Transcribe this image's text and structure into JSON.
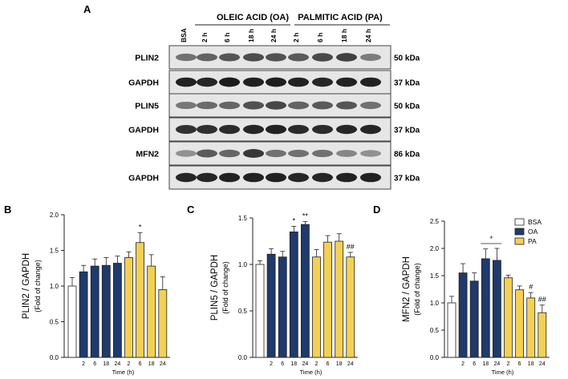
{
  "panel_letters": [
    "A",
    "B",
    "C",
    "D"
  ],
  "blot": {
    "groups": [
      "OLEIC ACID (OA)",
      "PALMITIC ACID (PA)"
    ],
    "lanes": [
      "BSA",
      "2 h",
      "6 h",
      "18 h",
      "24 h",
      "2 h",
      "6 h",
      "18 h",
      "24 h"
    ],
    "rows": [
      {
        "label": "PLIN2",
        "size": "50 kDa",
        "intensity": [
          0.55,
          0.62,
          0.68,
          0.72,
          0.7,
          0.66,
          0.74,
          0.78,
          0.5
        ]
      },
      {
        "label": "GAPDH",
        "size": "37 kDa",
        "intensity": [
          0.92,
          0.9,
          0.95,
          0.93,
          0.94,
          0.92,
          0.9,
          0.92,
          0.93
        ]
      },
      {
        "label": "PLIN5",
        "size": "50 kDa",
        "intensity": [
          0.52,
          0.58,
          0.6,
          0.7,
          0.75,
          0.62,
          0.66,
          0.68,
          0.55
        ]
      },
      {
        "label": "GAPDH",
        "size": "37 kDa",
        "intensity": [
          0.85,
          0.86,
          0.88,
          0.9,
          0.92,
          0.88,
          0.88,
          0.9,
          0.9
        ]
      },
      {
        "label": "MFN2",
        "size": "86 kDa",
        "intensity": [
          0.4,
          0.65,
          0.6,
          0.82,
          0.55,
          0.55,
          0.55,
          0.45,
          0.4
        ]
      },
      {
        "label": "GAPDH",
        "size": "37 kDa",
        "intensity": [
          0.9,
          0.9,
          0.92,
          0.92,
          0.93,
          0.9,
          0.9,
          0.92,
          0.93
        ]
      }
    ]
  },
  "colors": {
    "BSA": "#ffffff",
    "OA": "#1f3a6b",
    "PA": "#f3d055",
    "axis": "#222222",
    "blot_bg": "#e6e6e6",
    "band": "#111111"
  },
  "chart_data": [
    {
      "type": "bar",
      "panel": "B",
      "ylabel": "PLIN2 / GAPDH",
      "ylabel2": "(Fold of change)",
      "xlabel": "Time (h)",
      "ylim": [
        0.0,
        2.0
      ],
      "yticks": [
        0.0,
        0.5,
        1.0,
        1.5,
        2.0
      ],
      "ytick_labels": [
        "0.0",
        "0.5",
        "1.0",
        "1.5",
        "2.0"
      ],
      "categories": [
        "",
        "2",
        "6",
        "18",
        "24",
        "2",
        "6",
        "18",
        "24"
      ],
      "groups": [
        "BSA",
        "OA",
        "OA",
        "OA",
        "OA",
        "PA",
        "PA",
        "PA",
        "PA"
      ],
      "values": [
        1.0,
        1.2,
        1.28,
        1.29,
        1.32,
        1.4,
        1.61,
        1.28,
        0.95
      ],
      "errors": [
        0.12,
        0.09,
        0.1,
        0.11,
        0.1,
        0.08,
        0.14,
        0.16,
        0.18
      ],
      "annotations": [
        {
          "index": 6,
          "text": "*"
        }
      ]
    },
    {
      "type": "bar",
      "panel": "C",
      "ylabel": "PLIN5 / GAPDH",
      "ylabel2": "(Fold of change)",
      "xlabel": "Time (h)",
      "ylim": [
        0.0,
        1.5
      ],
      "yticks": [
        0.0,
        0.5,
        1.0,
        1.5
      ],
      "ytick_labels": [
        "0.0",
        "0.5",
        "1.0",
        "1.5"
      ],
      "categories": [
        "",
        "2",
        "6",
        "18",
        "24",
        "2",
        "6",
        "18",
        "24"
      ],
      "groups": [
        "BSA",
        "OA",
        "OA",
        "OA",
        "OA",
        "PA",
        "PA",
        "PA",
        "PA"
      ],
      "values": [
        1.0,
        1.11,
        1.08,
        1.35,
        1.43,
        1.08,
        1.24,
        1.25,
        1.08
      ],
      "errors": [
        0.04,
        0.06,
        0.06,
        0.06,
        0.03,
        0.08,
        0.07,
        0.08,
        0.05
      ],
      "annotations": [
        {
          "index": 3,
          "text": "*"
        },
        {
          "index": 4,
          "text": "**"
        },
        {
          "index": 8,
          "text": "##"
        }
      ]
    },
    {
      "type": "bar",
      "panel": "D",
      "ylabel": "MFN2 / GAPDH",
      "ylabel2": "(Fold of change)",
      "xlabel": "Time (h)",
      "ylim": [
        0.0,
        2.5
      ],
      "yticks": [
        0.0,
        0.5,
        1.0,
        1.5,
        2.0,
        2.5
      ],
      "ytick_labels": [
        "0.0",
        "0.5",
        "1.0",
        "1.5",
        "2.0",
        "2.5"
      ],
      "categories": [
        "",
        "2",
        "6",
        "18",
        "24",
        "2",
        "6",
        "18",
        "24"
      ],
      "groups": [
        "BSA",
        "OA",
        "OA",
        "OA",
        "OA",
        "PA",
        "PA",
        "PA",
        "PA"
      ],
      "values": [
        1.0,
        1.55,
        1.4,
        1.81,
        1.78,
        1.46,
        1.24,
        1.09,
        0.82
      ],
      "errors": [
        0.12,
        0.17,
        0.15,
        0.18,
        0.22,
        0.05,
        0.07,
        0.1,
        0.14
      ],
      "annotations": [
        {
          "index": 7,
          "text": "#"
        },
        {
          "index": 8,
          "text": "##"
        }
      ],
      "bracket": {
        "from": 3,
        "to": 4,
        "text": "*"
      },
      "legend": {
        "position": "top-right",
        "entries": [
          "BSA",
          "OA",
          "PA"
        ]
      }
    }
  ]
}
